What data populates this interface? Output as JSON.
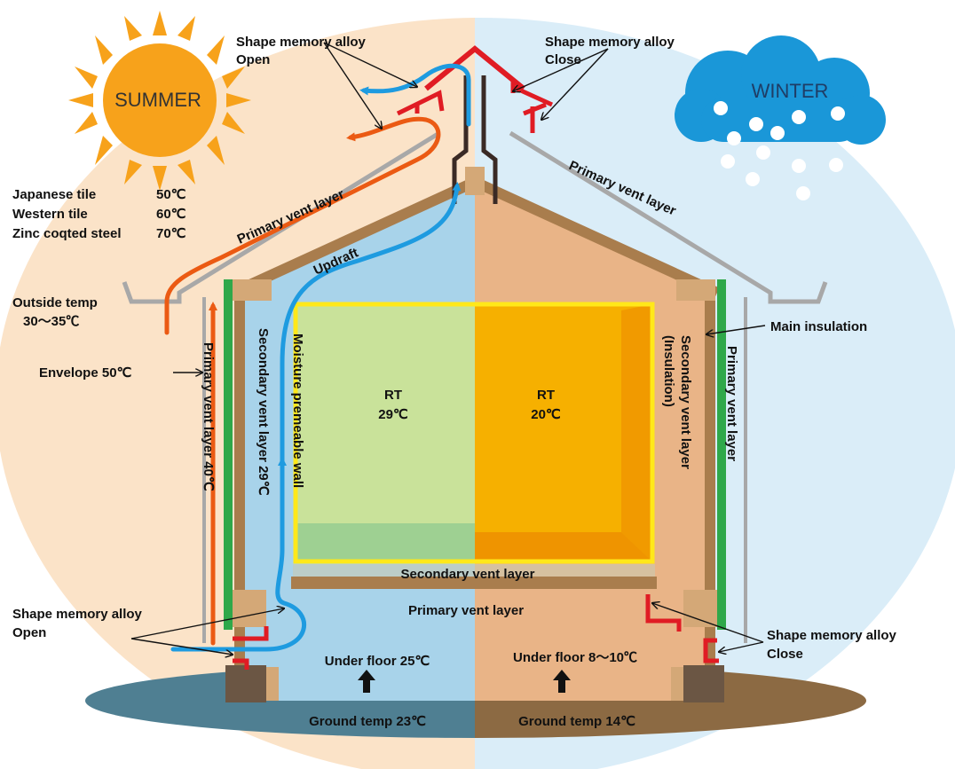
{
  "colors": {
    "summer_bg": "#fbe3c8",
    "winter_bg": "#daedf8",
    "house_summer": "#a8d3ea",
    "house_winter": "#e9b487",
    "frame": "#a97d4d",
    "room_summer": "#c9e29a",
    "room_winter": "#f6b000",
    "room_border": "#ffe81a",
    "vent_gray": "#a8a8a8",
    "green": "#2fa84a",
    "red_alloy": "#e01c24",
    "blue_flow": "#1e9be0",
    "orange_flow": "#eb5a13",
    "sun": "#f7a21b",
    "cloud": "#1a97d8"
  },
  "labels": {
    "summer": "SUMMER",
    "winter": "WINTER",
    "sma_open_top_1": "Shape memory alloy",
    "sma_open_top_2": "Open",
    "sma_close_top_1": "Shape memory alloy",
    "sma_close_top_2": "Close",
    "tile_jp": "Japanese  tile",
    "tile_jp_temp": "50℃",
    "tile_west": "Western  tile",
    "tile_west_temp": "60℃",
    "tile_zinc": "Zinc coqted  steel",
    "tile_zinc_temp": "70℃",
    "primary_vent_left_roof": "Primary vent layer",
    "primary_vent_right_roof": "Primary vent layer",
    "updraft": "Updraft",
    "outside_temp_1": "Outside temp",
    "outside_temp_2": "30～35℃",
    "envelope": "Envelope  50℃",
    "primary_vent_left_wall": "Primary vent layer  40℃",
    "secondary_vent_left_wall": "Secondary vent layer  29℃",
    "moisture_wall": "Moisture premeable wall",
    "rt_summer_1": "RT",
    "rt_summer_2": "29℃",
    "rt_winter_1": "RT",
    "rt_winter_2": "20℃",
    "main_insulation": "Main insulation",
    "secondary_vent_right_1": "Secondary vent layer",
    "secondary_vent_right_2": "(Insulation)",
    "primary_vent_right_wall": "Primary vent layer",
    "secondary_vent_floor": "Secondary vent layer",
    "primary_vent_floor": "Primary vent layer",
    "sma_open_bottom_1": "Shape memory alloy",
    "sma_open_bottom_2": "Open",
    "sma_close_bottom_1": "Shape memory alloy",
    "sma_close_bottom_2": "Close",
    "under_floor_summer": "Under floor 25℃",
    "under_floor_winter": "Under floor 8～10℃",
    "ground_summer": "Ground temp  23℃",
    "ground_winter": "Ground temp  14℃"
  }
}
